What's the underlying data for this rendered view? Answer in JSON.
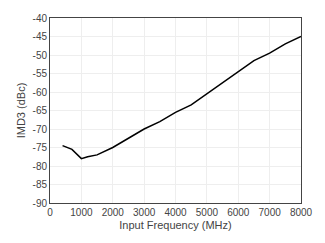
{
  "chart_data": {
    "type": "line",
    "x": [
      400,
      700,
      1000,
      1200,
      1500,
      2000,
      2500,
      3000,
      3500,
      4000,
      4500,
      5000,
      5500,
      6000,
      6500,
      7000,
      7500,
      8000
    ],
    "values": [
      -74.5,
      -75.5,
      -78.0,
      -77.5,
      -77.0,
      -75.0,
      -72.5,
      -70.0,
      -68.0,
      -65.5,
      -63.5,
      -60.5,
      -57.5,
      -54.5,
      -51.5,
      -49.5,
      -47.0,
      -45.0
    ],
    "xlabel": "Input Frequency (MHz)",
    "ylabel": "IMD3 (dBc)",
    "xlim": [
      0,
      8000
    ],
    "ylim": [
      -90,
      -40
    ],
    "xticks": [
      0,
      1000,
      2000,
      3000,
      4000,
      5000,
      6000,
      7000,
      8000
    ],
    "yticks": [
      -90,
      -85,
      -80,
      -75,
      -70,
      -65,
      -60,
      -55,
      -50,
      -45,
      -40
    ],
    "color": "#000000",
    "grid": true
  }
}
